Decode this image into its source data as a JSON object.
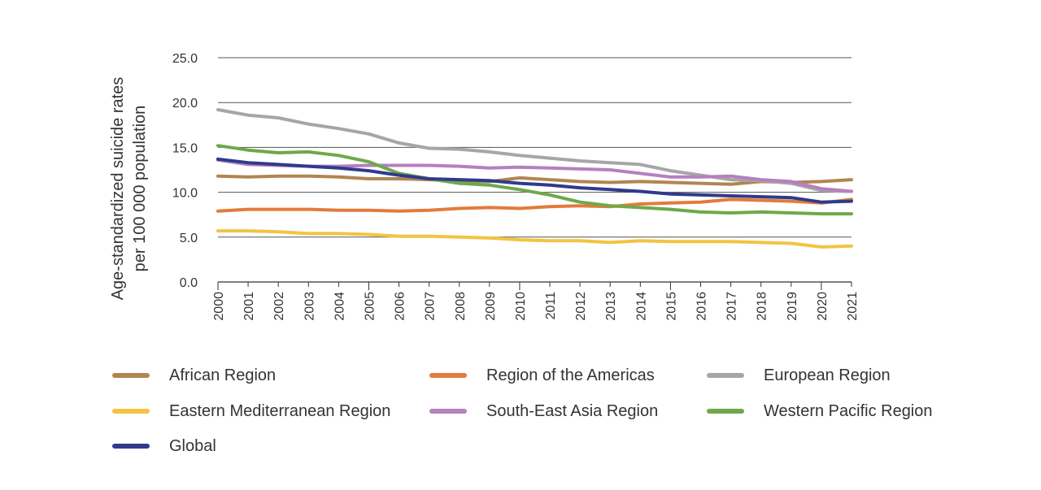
{
  "chart_data": {
    "type": "line",
    "title": "",
    "xlabel": "",
    "ylabel_lines": [
      "Age-standardized suicide rates",
      "per 100 000 population"
    ],
    "ylim": [
      0,
      25
    ],
    "yticks": [
      "0.0",
      "5.0",
      "10.0",
      "15.0",
      "20.0",
      "25.0"
    ],
    "ytick_values": [
      0,
      5,
      10,
      15,
      20,
      25
    ],
    "grid": "horizontal",
    "legend_position": "bottom",
    "x": [
      "2000",
      "2001",
      "2002",
      "2003",
      "2004",
      "2005",
      "2006",
      "2007",
      "2008",
      "2009",
      "2010",
      "2011",
      "2012",
      "2013",
      "2014",
      "2015",
      "2016",
      "2017",
      "2018",
      "2019",
      "2020",
      "2021"
    ],
    "series": [
      {
        "name": "African Region",
        "color": "#b08650",
        "values": [
          11.8,
          11.7,
          11.8,
          11.8,
          11.7,
          11.5,
          11.5,
          11.4,
          11.3,
          11.2,
          11.6,
          11.4,
          11.2,
          11.1,
          11.2,
          11.1,
          11.0,
          10.9,
          11.2,
          11.1,
          11.2,
          11.4
        ]
      },
      {
        "name": "Region of the Americas",
        "color": "#e27b3c",
        "values": [
          7.9,
          8.1,
          8.1,
          8.1,
          8.0,
          8.0,
          7.9,
          8.0,
          8.2,
          8.3,
          8.2,
          8.4,
          8.5,
          8.4,
          8.7,
          8.8,
          8.9,
          9.2,
          9.1,
          9.0,
          8.8,
          9.2
        ]
      },
      {
        "name": "European Region",
        "color": "#a6a6a6",
        "values": [
          19.2,
          18.6,
          18.3,
          17.6,
          17.1,
          16.5,
          15.5,
          14.9,
          14.8,
          14.5,
          14.1,
          13.8,
          13.5,
          13.3,
          13.1,
          12.4,
          11.9,
          11.4,
          11.3,
          11.0,
          10.2,
          10.1
        ]
      },
      {
        "name": "Eastern Mediterranean Region",
        "color": "#f2c440",
        "values": [
          5.7,
          5.7,
          5.6,
          5.4,
          5.4,
          5.3,
          5.1,
          5.1,
          5.0,
          4.9,
          4.7,
          4.6,
          4.6,
          4.4,
          4.6,
          4.5,
          4.5,
          4.5,
          4.4,
          4.3,
          3.9,
          4.0
        ]
      },
      {
        "name": "South-East Asia Region",
        "color": "#b67fbf",
        "values": [
          13.6,
          13.1,
          13.0,
          12.9,
          12.9,
          13.0,
          13.0,
          13.0,
          12.9,
          12.7,
          12.8,
          12.7,
          12.6,
          12.5,
          12.1,
          11.7,
          11.7,
          11.8,
          11.4,
          11.2,
          10.4,
          10.1
        ]
      },
      {
        "name": "Western Pacific Region",
        "color": "#6fa84b",
        "values": [
          15.2,
          14.7,
          14.4,
          14.5,
          14.1,
          13.4,
          12.1,
          11.5,
          11.0,
          10.8,
          10.3,
          9.7,
          8.9,
          8.5,
          8.3,
          8.1,
          7.8,
          7.7,
          7.8,
          7.7,
          7.6,
          7.6
        ]
      },
      {
        "name": "Global",
        "color": "#2e3b8c",
        "values": [
          13.7,
          13.3,
          13.1,
          12.9,
          12.7,
          12.4,
          11.9,
          11.5,
          11.4,
          11.3,
          11.0,
          10.8,
          10.5,
          10.3,
          10.1,
          9.8,
          9.7,
          9.6,
          9.5,
          9.4,
          8.9,
          9.0
        ]
      }
    ]
  }
}
